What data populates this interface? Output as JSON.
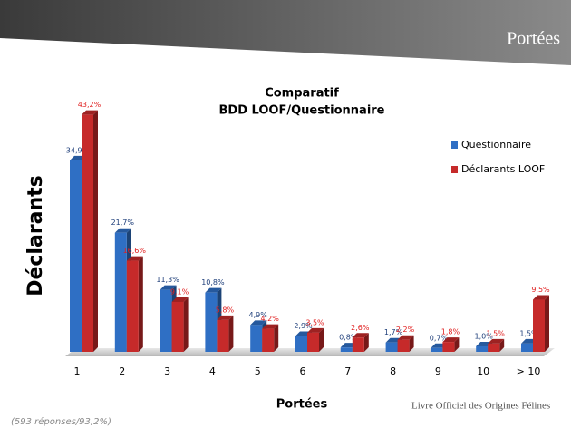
{
  "header": {
    "title": "Portées"
  },
  "chart_data": {
    "type": "bar",
    "title": [
      "Comparatif",
      "BDD  LOOF/Questionnaire"
    ],
    "y_label": "Déclarants",
    "x_label": "Portées",
    "categories": [
      "1",
      "2",
      "3",
      "4",
      "5",
      "6",
      "7",
      "8",
      "9",
      "10",
      "> 10"
    ],
    "series": [
      {
        "name": "Questionnaire",
        "color": "#2f6fc4",
        "values": [
          34.9,
          21.7,
          11.3,
          10.8,
          4.9,
          2.9,
          0.8,
          1.7,
          0.7,
          1.0,
          1.5
        ],
        "value_labels": [
          "34,9%",
          "21,7%",
          "11,3%",
          "10,8%",
          "4,9%",
          "2,9%",
          "0,8%",
          "1,7%",
          "0,7%",
          "1,0%",
          "1,5%"
        ]
      },
      {
        "name": "Déclarants LOOF",
        "color": "#c62a2a",
        "values": [
          43.2,
          16.6,
          9.1,
          5.8,
          4.2,
          3.5,
          2.6,
          2.2,
          1.8,
          1.5,
          9.5
        ],
        "value_labels": [
          "43,2%",
          "16,6%",
          "9,1%",
          "5,8%",
          "4,2%",
          "3,5%",
          "2,6%",
          "2,2%",
          "1,8%",
          "1,5%",
          "9,5%"
        ]
      }
    ],
    "legend": "right"
  },
  "footer": {
    "note": "(593 réponses/93,2%)",
    "logo": "Livre Officiel des Origines Félines"
  }
}
